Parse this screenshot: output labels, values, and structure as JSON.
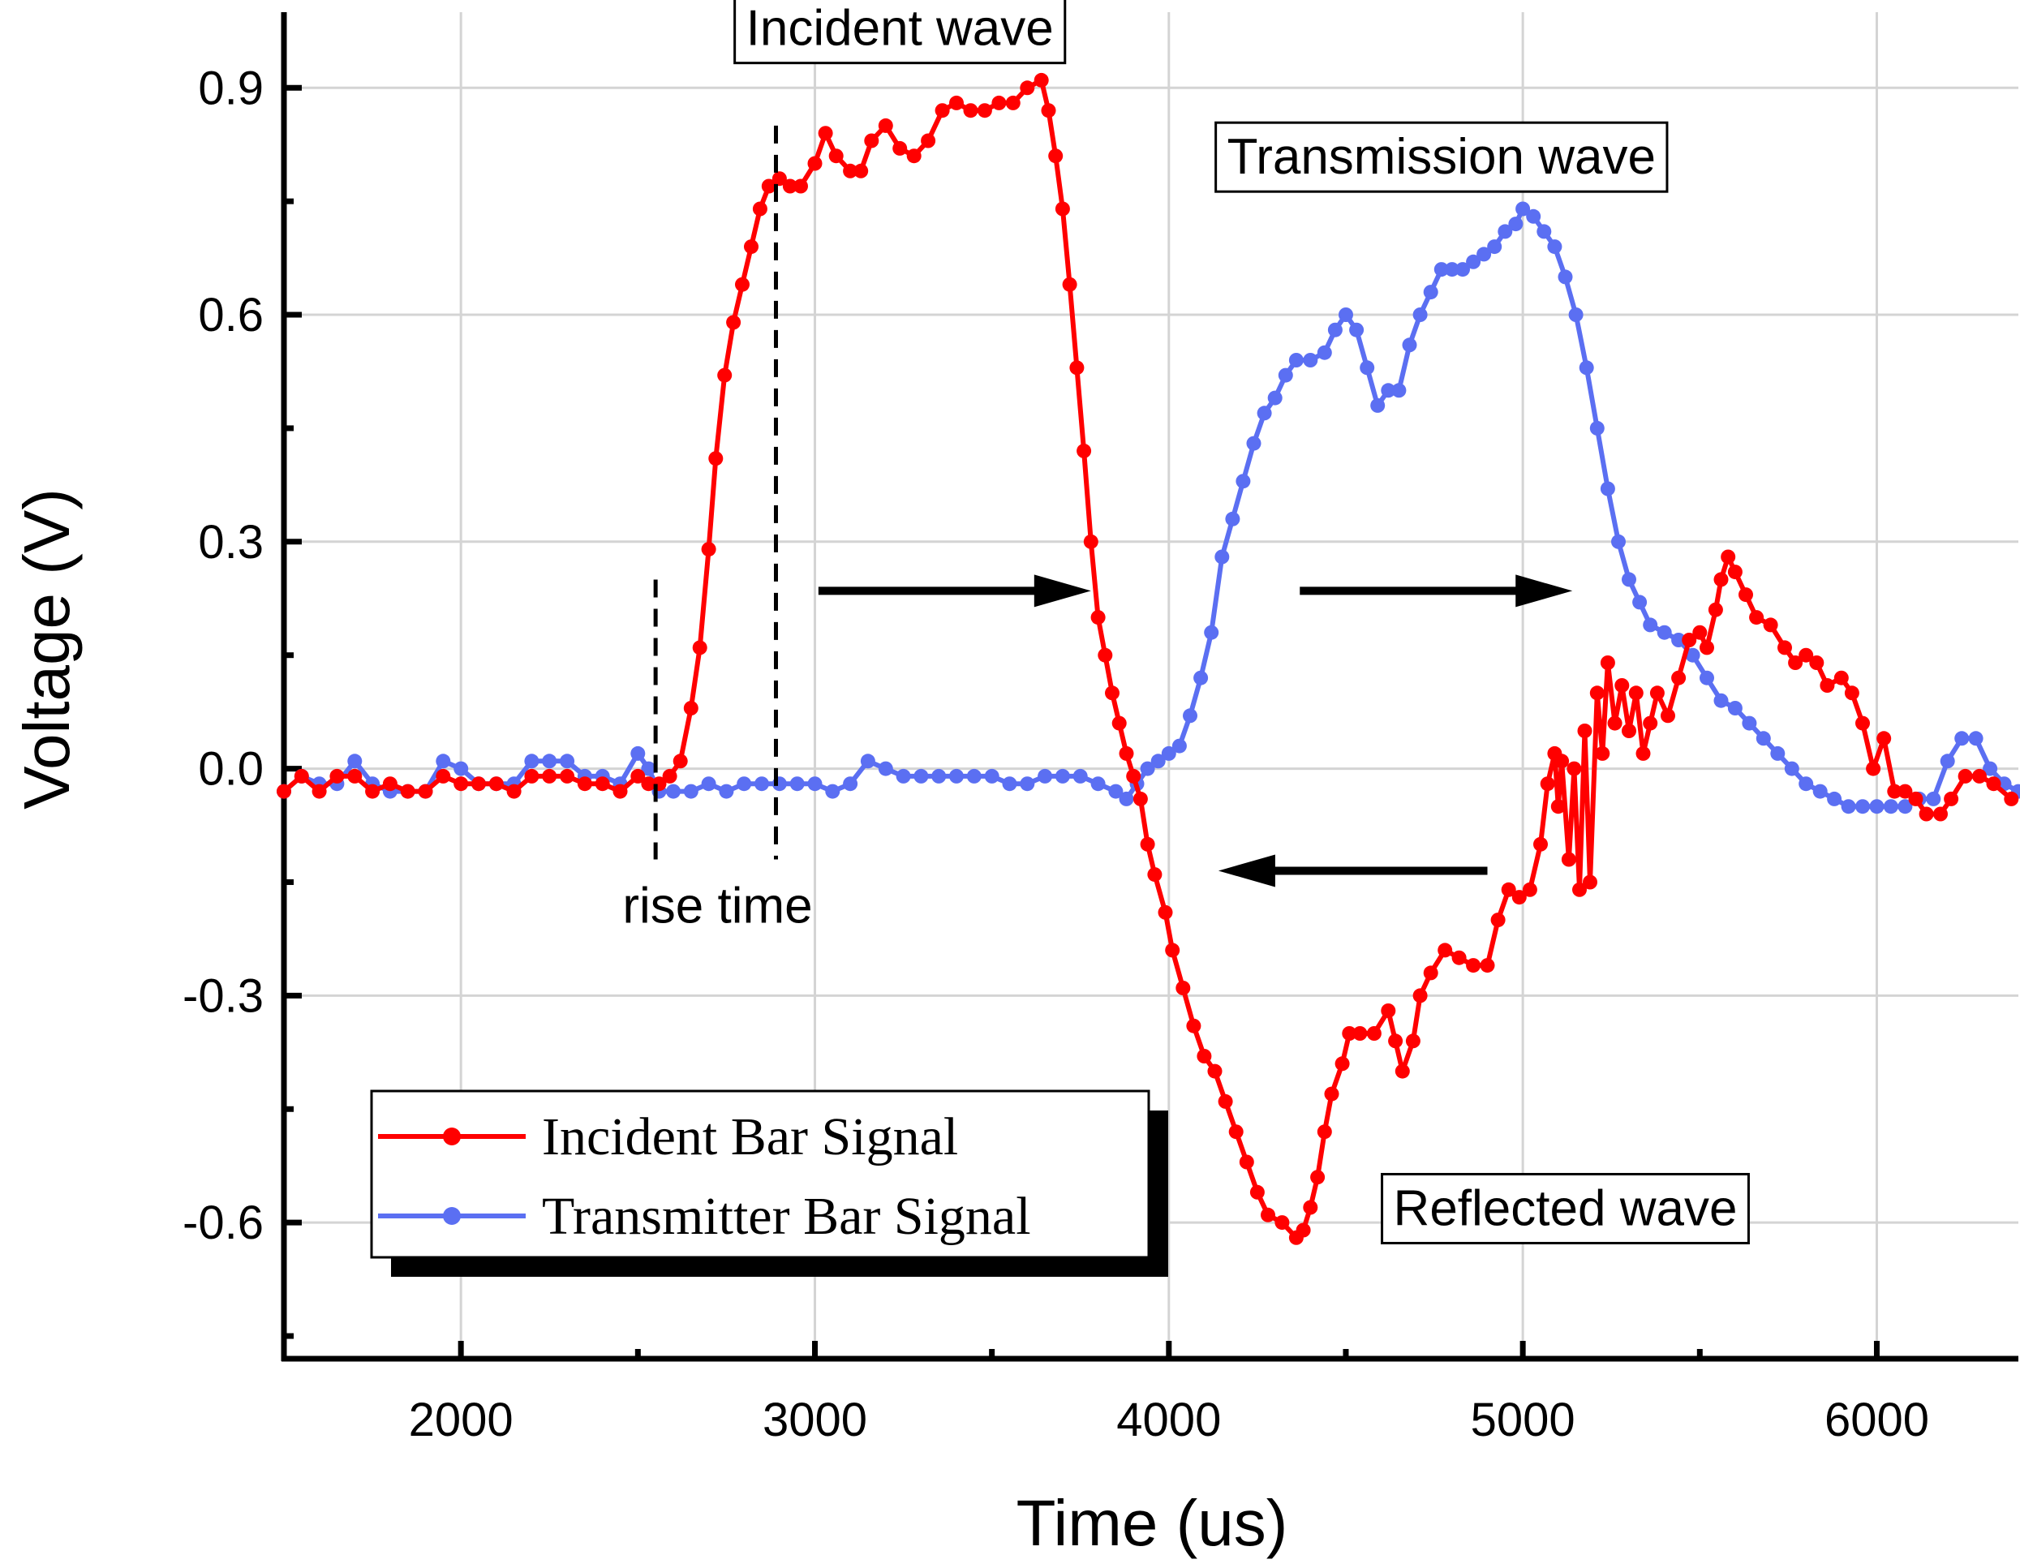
{
  "chart_data": {
    "type": "line",
    "title": "",
    "xlabel": "Time (us)",
    "ylabel": "Voltage (V)",
    "xlim": [
      1500,
      6400
    ],
    "ylim": [
      -0.78,
      1.0
    ],
    "xticks": [
      2000,
      3000,
      4000,
      5000,
      6000
    ],
    "xtick_labels": [
      "2000",
      "3000",
      "4000",
      "5000",
      "6000"
    ],
    "yticks": [
      -0.6,
      -0.3,
      0.0,
      0.3,
      0.6,
      0.9
    ],
    "ytick_labels": [
      "-0.6",
      "-0.3",
      "0.0",
      "0.3",
      "0.6",
      "0.9"
    ],
    "grid": true,
    "legend_position": "bottom-left",
    "series": [
      {
        "name": "Incident Bar Signal",
        "color": "#ff0000",
        "points": [
          [
            1500,
            -0.03
          ],
          [
            1550,
            -0.01
          ],
          [
            1600,
            -0.03
          ],
          [
            1650,
            -0.01
          ],
          [
            1700,
            -0.01
          ],
          [
            1750,
            -0.03
          ],
          [
            1800,
            -0.02
          ],
          [
            1850,
            -0.03
          ],
          [
            1900,
            -0.03
          ],
          [
            1950,
            -0.01
          ],
          [
            2000,
            -0.02
          ],
          [
            2050,
            -0.02
          ],
          [
            2100,
            -0.02
          ],
          [
            2150,
            -0.03
          ],
          [
            2200,
            -0.01
          ],
          [
            2250,
            -0.01
          ],
          [
            2300,
            -0.01
          ],
          [
            2350,
            -0.02
          ],
          [
            2400,
            -0.02
          ],
          [
            2450,
            -0.03
          ],
          [
            2500,
            -0.01
          ],
          [
            2530,
            -0.02
          ],
          [
            2560,
            -0.02
          ],
          [
            2590,
            -0.01
          ],
          [
            2620,
            0.01
          ],
          [
            2650,
            0.08
          ],
          [
            2675,
            0.16
          ],
          [
            2700,
            0.29
          ],
          [
            2720,
            0.41
          ],
          [
            2745,
            0.52
          ],
          [
            2770,
            0.59
          ],
          [
            2795,
            0.64
          ],
          [
            2820,
            0.69
          ],
          [
            2845,
            0.74
          ],
          [
            2870,
            0.77
          ],
          [
            2900,
            0.78
          ],
          [
            2930,
            0.77
          ],
          [
            2960,
            0.77
          ],
          [
            3000,
            0.8
          ],
          [
            3030,
            0.84
          ],
          [
            3060,
            0.81
          ],
          [
            3100,
            0.79
          ],
          [
            3130,
            0.79
          ],
          [
            3160,
            0.83
          ],
          [
            3200,
            0.85
          ],
          [
            3240,
            0.82
          ],
          [
            3280,
            0.81
          ],
          [
            3320,
            0.83
          ],
          [
            3360,
            0.87
          ],
          [
            3400,
            0.88
          ],
          [
            3440,
            0.87
          ],
          [
            3480,
            0.87
          ],
          [
            3520,
            0.88
          ],
          [
            3560,
            0.88
          ],
          [
            3600,
            0.9
          ],
          [
            3640,
            0.91
          ],
          [
            3660,
            0.87
          ],
          [
            3680,
            0.81
          ],
          [
            3700,
            0.74
          ],
          [
            3720,
            0.64
          ],
          [
            3740,
            0.53
          ],
          [
            3760,
            0.42
          ],
          [
            3780,
            0.3
          ],
          [
            3800,
            0.2
          ],
          [
            3820,
            0.15
          ],
          [
            3840,
            0.1
          ],
          [
            3860,
            0.06
          ],
          [
            3880,
            0.02
          ],
          [
            3900,
            -0.01
          ],
          [
            3920,
            -0.04
          ],
          [
            3940,
            -0.1
          ],
          [
            3960,
            -0.14
          ],
          [
            3990,
            -0.19
          ],
          [
            4010,
            -0.24
          ],
          [
            4040,
            -0.29
          ],
          [
            4070,
            -0.34
          ],
          [
            4100,
            -0.38
          ],
          [
            4130,
            -0.4
          ],
          [
            4160,
            -0.44
          ],
          [
            4190,
            -0.48
          ],
          [
            4220,
            -0.52
          ],
          [
            4250,
            -0.56
          ],
          [
            4280,
            -0.59
          ],
          [
            4320,
            -0.6
          ],
          [
            4360,
            -0.62
          ],
          [
            4380,
            -0.61
          ],
          [
            4400,
            -0.58
          ],
          [
            4420,
            -0.54
          ],
          [
            4440,
            -0.48
          ],
          [
            4460,
            -0.43
          ],
          [
            4490,
            -0.39
          ],
          [
            4510,
            -0.35
          ],
          [
            4540,
            -0.35
          ],
          [
            4580,
            -0.35
          ],
          [
            4620,
            -0.32
          ],
          [
            4640,
            -0.36
          ],
          [
            4660,
            -0.4
          ],
          [
            4690,
            -0.36
          ],
          [
            4710,
            -0.3
          ],
          [
            4740,
            -0.27
          ],
          [
            4780,
            -0.24
          ],
          [
            4820,
            -0.25
          ],
          [
            4860,
            -0.26
          ],
          [
            4900,
            -0.26
          ],
          [
            4930,
            -0.2
          ],
          [
            4960,
            -0.16
          ],
          [
            4990,
            -0.17
          ],
          [
            5020,
            -0.16
          ],
          [
            5050,
            -0.1
          ],
          [
            5070,
            -0.02
          ],
          [
            5090,
            0.02
          ],
          [
            5100,
            -0.05
          ],
          [
            5110,
            0.01
          ],
          [
            5130,
            -0.12
          ],
          [
            5145,
            0.0
          ],
          [
            5160,
            -0.16
          ],
          [
            5175,
            0.05
          ],
          [
            5190,
            -0.15
          ],
          [
            5210,
            0.1
          ],
          [
            5225,
            0.02
          ],
          [
            5240,
            0.14
          ],
          [
            5260,
            0.06
          ],
          [
            5280,
            0.11
          ],
          [
            5300,
            0.05
          ],
          [
            5320,
            0.1
          ],
          [
            5340,
            0.02
          ],
          [
            5360,
            0.06
          ],
          [
            5380,
            0.1
          ],
          [
            5410,
            0.07
          ],
          [
            5440,
            0.12
          ],
          [
            5470,
            0.17
          ],
          [
            5500,
            0.18
          ],
          [
            5520,
            0.16
          ],
          [
            5545,
            0.21
          ],
          [
            5560,
            0.25
          ],
          [
            5580,
            0.28
          ],
          [
            5600,
            0.26
          ],
          [
            5630,
            0.23
          ],
          [
            5660,
            0.2
          ],
          [
            5700,
            0.19
          ],
          [
            5740,
            0.16
          ],
          [
            5770,
            0.14
          ],
          [
            5800,
            0.15
          ],
          [
            5830,
            0.14
          ],
          [
            5860,
            0.11
          ],
          [
            5900,
            0.12
          ],
          [
            5930,
            0.1
          ],
          [
            5960,
            0.06
          ],
          [
            5990,
            0.0
          ],
          [
            6020,
            0.04
          ],
          [
            6050,
            -0.03
          ],
          [
            6080,
            -0.03
          ],
          [
            6110,
            -0.04
          ],
          [
            6140,
            -0.06
          ],
          [
            6180,
            -0.06
          ],
          [
            6210,
            -0.04
          ],
          [
            6250,
            -0.01
          ],
          [
            6290,
            -0.01
          ],
          [
            6330,
            -0.02
          ],
          [
            6380,
            -0.04
          ]
        ]
      },
      {
        "name": "Transmitter Bar Signal",
        "color": "#5b6ff2",
        "points": [
          [
            1500,
            -0.03
          ],
          [
            1550,
            -0.01
          ],
          [
            1600,
            -0.02
          ],
          [
            1650,
            -0.02
          ],
          [
            1700,
            0.01
          ],
          [
            1750,
            -0.02
          ],
          [
            1800,
            -0.03
          ],
          [
            1850,
            -0.03
          ],
          [
            1900,
            -0.03
          ],
          [
            1950,
            0.01
          ],
          [
            2000,
            0.0
          ],
          [
            2050,
            -0.02
          ],
          [
            2100,
            -0.02
          ],
          [
            2150,
            -0.02
          ],
          [
            2200,
            0.01
          ],
          [
            2250,
            0.01
          ],
          [
            2300,
            0.01
          ],
          [
            2350,
            -0.01
          ],
          [
            2400,
            -0.01
          ],
          [
            2450,
            -0.02
          ],
          [
            2500,
            0.02
          ],
          [
            2530,
            0.0
          ],
          [
            2560,
            -0.03
          ],
          [
            2600,
            -0.03
          ],
          [
            2650,
            -0.03
          ],
          [
            2700,
            -0.02
          ],
          [
            2750,
            -0.03
          ],
          [
            2800,
            -0.02
          ],
          [
            2850,
            -0.02
          ],
          [
            2900,
            -0.02
          ],
          [
            2950,
            -0.02
          ],
          [
            3000,
            -0.02
          ],
          [
            3050,
            -0.03
          ],
          [
            3100,
            -0.02
          ],
          [
            3150,
            0.01
          ],
          [
            3200,
            0.0
          ],
          [
            3250,
            -0.01
          ],
          [
            3300,
            -0.01
          ],
          [
            3350,
            -0.01
          ],
          [
            3400,
            -0.01
          ],
          [
            3450,
            -0.01
          ],
          [
            3500,
            -0.01
          ],
          [
            3550,
            -0.02
          ],
          [
            3600,
            -0.02
          ],
          [
            3650,
            -0.01
          ],
          [
            3700,
            -0.01
          ],
          [
            3750,
            -0.01
          ],
          [
            3800,
            -0.02
          ],
          [
            3850,
            -0.03
          ],
          [
            3880,
            -0.04
          ],
          [
            3910,
            -0.02
          ],
          [
            3940,
            0.0
          ],
          [
            3970,
            0.01
          ],
          [
            4000,
            0.02
          ],
          [
            4030,
            0.03
          ],
          [
            4060,
            0.07
          ],
          [
            4090,
            0.12
          ],
          [
            4120,
            0.18
          ],
          [
            4150,
            0.28
          ],
          [
            4180,
            0.33
          ],
          [
            4210,
            0.38
          ],
          [
            4240,
            0.43
          ],
          [
            4270,
            0.47
          ],
          [
            4300,
            0.49
          ],
          [
            4330,
            0.52
          ],
          [
            4360,
            0.54
          ],
          [
            4400,
            0.54
          ],
          [
            4440,
            0.55
          ],
          [
            4470,
            0.58
          ],
          [
            4500,
            0.6
          ],
          [
            4530,
            0.58
          ],
          [
            4560,
            0.53
          ],
          [
            4590,
            0.48
          ],
          [
            4620,
            0.5
          ],
          [
            4650,
            0.5
          ],
          [
            4680,
            0.56
          ],
          [
            4710,
            0.6
          ],
          [
            4740,
            0.63
          ],
          [
            4770,
            0.66
          ],
          [
            4800,
            0.66
          ],
          [
            4830,
            0.66
          ],
          [
            4860,
            0.67
          ],
          [
            4890,
            0.68
          ],
          [
            4920,
            0.69
          ],
          [
            4950,
            0.71
          ],
          [
            4980,
            0.72
          ],
          [
            5000,
            0.74
          ],
          [
            5030,
            0.73
          ],
          [
            5060,
            0.71
          ],
          [
            5090,
            0.69
          ],
          [
            5120,
            0.65
          ],
          [
            5150,
            0.6
          ],
          [
            5180,
            0.53
          ],
          [
            5210,
            0.45
          ],
          [
            5240,
            0.37
          ],
          [
            5270,
            0.3
          ],
          [
            5300,
            0.25
          ],
          [
            5330,
            0.22
          ],
          [
            5360,
            0.19
          ],
          [
            5400,
            0.18
          ],
          [
            5440,
            0.17
          ],
          [
            5480,
            0.15
          ],
          [
            5520,
            0.12
          ],
          [
            5560,
            0.09
          ],
          [
            5600,
            0.08
          ],
          [
            5640,
            0.06
          ],
          [
            5680,
            0.04
          ],
          [
            5720,
            0.02
          ],
          [
            5760,
            0.0
          ],
          [
            5800,
            -0.02
          ],
          [
            5840,
            -0.03
          ],
          [
            5880,
            -0.04
          ],
          [
            5920,
            -0.05
          ],
          [
            5960,
            -0.05
          ],
          [
            6000,
            -0.05
          ],
          [
            6040,
            -0.05
          ],
          [
            6080,
            -0.05
          ],
          [
            6120,
            -0.04
          ],
          [
            6160,
            -0.04
          ],
          [
            6200,
            0.01
          ],
          [
            6240,
            0.04
          ],
          [
            6280,
            0.04
          ],
          [
            6320,
            0.0
          ],
          [
            6360,
            -0.02
          ],
          [
            6400,
            -0.03
          ]
        ]
      }
    ],
    "annotations": [
      {
        "text": "Incident wave",
        "boxed": true,
        "x": 3240,
        "y": 0.98
      },
      {
        "text": "Transmission wave",
        "boxed": true,
        "x": 4770,
        "y": 0.81
      },
      {
        "text": "Reflected wave",
        "boxed": true,
        "x": 5120,
        "y": -0.58
      },
      {
        "text": "rise time",
        "boxed": false,
        "x": 2725,
        "y": -0.18
      }
    ],
    "arrows": [
      {
        "direction": "right",
        "from": [
          3010,
          0.235
        ],
        "to": [
          3780,
          0.235
        ]
      },
      {
        "direction": "right",
        "from": [
          4370,
          0.235
        ],
        "to": [
          5140,
          0.235
        ]
      },
      {
        "direction": "left",
        "from": [
          4900,
          -0.135
        ],
        "to": [
          4140,
          -0.135
        ]
      }
    ],
    "rise_time_markers": [
      2550,
      2890
    ]
  }
}
